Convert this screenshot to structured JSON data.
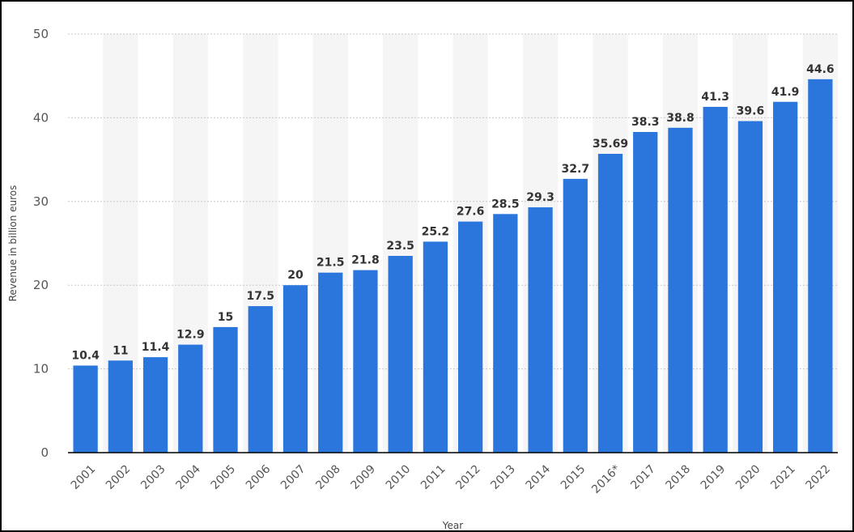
{
  "chart_data": {
    "type": "bar",
    "title": "",
    "xlabel": "Year",
    "ylabel": "Revenue in billion euros",
    "categories": [
      "2001",
      "2002",
      "2003",
      "2004",
      "2005",
      "2006",
      "2007",
      "2008",
      "2009",
      "2010",
      "2011",
      "2012",
      "2013",
      "2014",
      "2015",
      "2016*",
      "2017",
      "2018",
      "2019",
      "2020",
      "2021",
      "2022"
    ],
    "values": [
      10.4,
      11,
      11.4,
      12.9,
      15,
      17.5,
      20,
      21.5,
      21.8,
      23.5,
      25.2,
      27.6,
      28.5,
      29.3,
      32.7,
      35.69,
      38.3,
      38.8,
      41.3,
      39.6,
      41.9,
      44.6
    ],
    "value_labels": [
      "10.4",
      "11",
      "11.4",
      "12.9",
      "15",
      "17.5",
      "20",
      "21.5",
      "21.8",
      "23.5",
      "25.2",
      "27.6",
      "28.5",
      "29.3",
      "32.7",
      "35.69",
      "38.3",
      "38.8",
      "41.3",
      "39.6",
      "41.9",
      "44.6"
    ],
    "yticks": [
      0,
      10,
      20,
      30,
      40,
      50
    ],
    "ylim": [
      0,
      50
    ],
    "grid": true,
    "legend": "none",
    "colors": {
      "bar": "#2a76dd",
      "grid": "#c8c8c8",
      "band": "#f5f5f5",
      "axis": "#000000"
    }
  }
}
